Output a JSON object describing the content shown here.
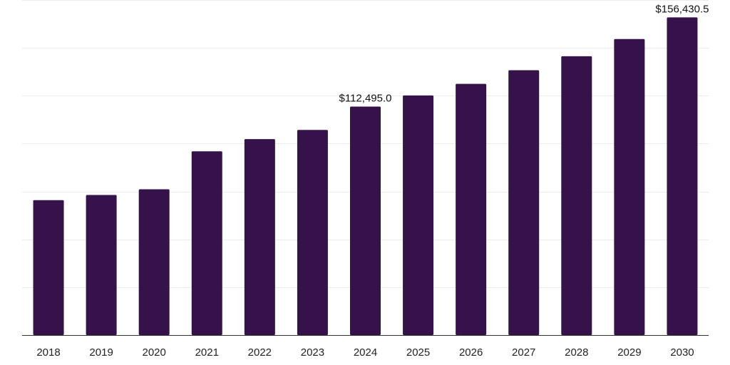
{
  "chart_data": {
    "type": "bar",
    "title": "",
    "xlabel": "",
    "ylabel": "",
    "categories": [
      "2018",
      "2019",
      "2020",
      "2021",
      "2022",
      "2023",
      "2024",
      "2025",
      "2026",
      "2027",
      "2028",
      "2029",
      "2030"
    ],
    "values": [
      66450,
      69000,
      71800,
      90500,
      96500,
      101000,
      112495.0,
      118000,
      123700,
      130400,
      137300,
      145800,
      156430.5
    ],
    "data_labels": [
      {
        "category": "2024",
        "text": "$112,495.0"
      },
      {
        "category": "2030",
        "text": "$156,430.5"
      }
    ],
    "ylim": [
      0,
      165000
    ],
    "grid": true,
    "y_gridlines": [
      0,
      23571,
      47143,
      70714,
      94286,
      117857,
      141429,
      165000
    ],
    "bar_color": "#36124a",
    "axis_color": "#333333",
    "grid_color": "#ececec"
  }
}
